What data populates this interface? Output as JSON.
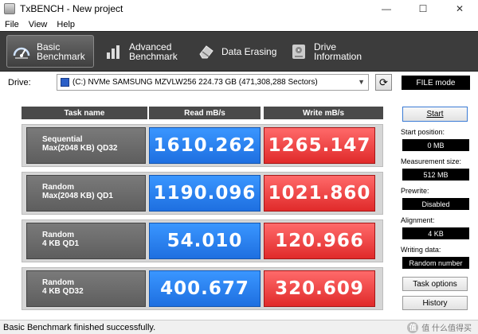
{
  "window": {
    "title": "TxBENCH - New project",
    "controls": [
      "—",
      "☐",
      "✕"
    ]
  },
  "menu": [
    "File",
    "View",
    "Help"
  ],
  "tabs": [
    {
      "label": "Basic\nBenchmark",
      "icon": "speedometer-icon",
      "active": true
    },
    {
      "label": "Advanced\nBenchmark",
      "icon": "bar-chart-icon",
      "active": false
    },
    {
      "label": "Data Erasing",
      "icon": "eraser-icon",
      "active": false
    },
    {
      "label": "Drive\nInformation",
      "icon": "drive-icon",
      "active": false
    }
  ],
  "drive": {
    "label": "Drive:",
    "selected": "(C:) NVMe SAMSUNG MZVLW256   224.73 GB (471,308,288 Sectors)",
    "mode": "FILE mode"
  },
  "results": {
    "headers": {
      "task": "Task name",
      "read": "Read mB/s",
      "write": "Write mB/s"
    },
    "rows": [
      {
        "line1": "Sequential",
        "line2": "Max(2048 KB) QD32",
        "read": "1610.262",
        "write": "1265.147"
      },
      {
        "line1": "Random",
        "line2": "Max(2048 KB) QD1",
        "read": "1190.096",
        "write": "1021.860"
      },
      {
        "line1": "Random",
        "line2": "4 KB QD1",
        "read": "54.010",
        "write": "120.966"
      },
      {
        "line1": "Random",
        "line2": "4 KB QD32",
        "read": "400.677",
        "write": "320.609"
      }
    ]
  },
  "side": {
    "start": "Start",
    "start_position_label": "Start position:",
    "start_position": "0 MB",
    "measurement_size_label": "Measurement size:",
    "measurement_size": "512 MB",
    "prewrite_label": "Prewrite:",
    "prewrite": "Disabled",
    "alignment_label": "Alignment:",
    "alignment": "4 KB",
    "writing_data_label": "Writing data:",
    "writing_data": "Random number",
    "task_options": "Task options",
    "history": "History"
  },
  "status": "Basic Benchmark finished successfully.",
  "watermark": "值 什么值得买",
  "colors": {
    "read": "#2a82f5",
    "write": "#f04848",
    "toolbar": "#3c3c3c"
  }
}
